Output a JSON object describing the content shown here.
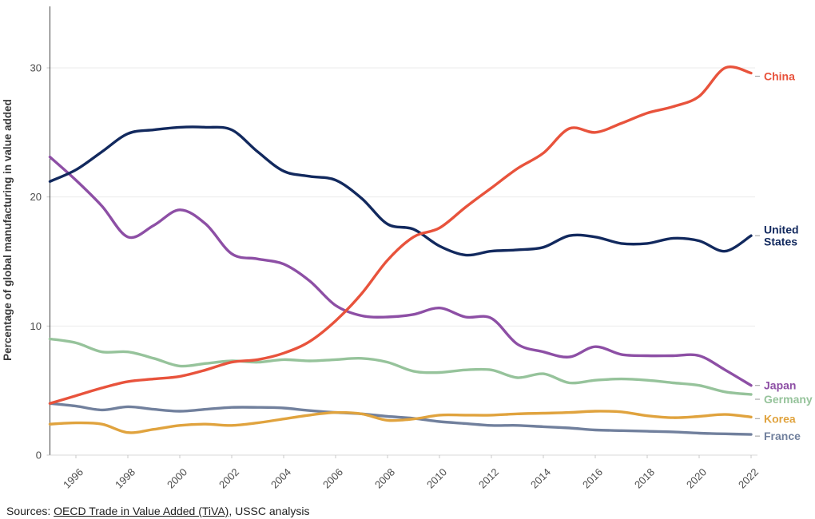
{
  "chart_data": {
    "type": "line",
    "title": "",
    "ylabel": "Percentage of global manufacturing in value added",
    "xlabel": "",
    "xlim": [
      1995,
      2022
    ],
    "ylim": [
      0,
      33.5
    ],
    "grid": "horizontal",
    "legend_position": "right-edge-labels",
    "y_ticks": [
      "0",
      "10",
      "20",
      "30"
    ],
    "x_tick_labels": [
      "1996",
      "1998",
      "2000",
      "2002",
      "2004",
      "2006",
      "2008",
      "2010",
      "2012",
      "2014",
      "2016",
      "2018",
      "2020",
      "2022"
    ],
    "years": [
      1995,
      1996,
      1997,
      1998,
      1999,
      2000,
      2001,
      2002,
      2003,
      2004,
      2005,
      2006,
      2007,
      2008,
      2009,
      2010,
      2011,
      2012,
      2013,
      2014,
      2015,
      2016,
      2017,
      2018,
      2019,
      2020,
      2021,
      2022
    ],
    "series": [
      {
        "name": "China",
        "label_lines": [
          "China"
        ],
        "color": "#e8533c",
        "label_dy": 4,
        "values": [
          4.0,
          4.6,
          5.2,
          5.7,
          5.9,
          6.1,
          6.6,
          7.2,
          7.4,
          7.9,
          8.8,
          10.4,
          12.5,
          15.1,
          16.9,
          17.6,
          19.2,
          20.7,
          22.2,
          23.4,
          25.3,
          25.0,
          25.7,
          26.5,
          27.0,
          27.8,
          30.0,
          29.6
        ]
      },
      {
        "name": "United States",
        "label_lines": [
          "United",
          "States"
        ],
        "color": "#12295e",
        "label_dy": 0,
        "values": [
          21.2,
          22.1,
          23.5,
          24.9,
          25.2,
          25.4,
          25.4,
          25.2,
          23.5,
          22.0,
          21.6,
          21.3,
          19.9,
          17.9,
          17.5,
          16.2,
          15.5,
          15.8,
          15.9,
          16.1,
          17.0,
          16.9,
          16.4,
          16.4,
          16.8,
          16.6,
          15.8,
          17.0
        ]
      },
      {
        "name": "Japan",
        "label_lines": [
          "Japan"
        ],
        "color": "#8d4fa5",
        "label_dy": 0,
        "values": [
          23.1,
          21.3,
          19.3,
          16.9,
          17.8,
          19.0,
          17.9,
          15.6,
          15.2,
          14.8,
          13.5,
          11.6,
          10.8,
          10.7,
          10.9,
          11.4,
          10.7,
          10.6,
          8.6,
          8.0,
          7.6,
          8.4,
          7.8,
          7.7,
          7.7,
          7.7,
          6.6,
          5.4
        ]
      },
      {
        "name": "Germany",
        "label_lines": [
          "Germany"
        ],
        "color": "#96c39b",
        "label_dy": 6,
        "values": [
          9.0,
          8.7,
          8.0,
          8.0,
          7.5,
          6.9,
          7.1,
          7.3,
          7.2,
          7.4,
          7.3,
          7.4,
          7.5,
          7.2,
          6.5,
          6.4,
          6.6,
          6.6,
          6.0,
          6.3,
          5.6,
          5.8,
          5.9,
          5.8,
          5.6,
          5.4,
          4.9,
          4.7
        ]
      },
      {
        "name": "Korea",
        "label_lines": [
          "Korea"
        ],
        "color": "#e0a33e",
        "label_dy": 2,
        "values": [
          2.4,
          2.5,
          2.4,
          1.75,
          2.0,
          2.3,
          2.4,
          2.3,
          2.5,
          2.8,
          3.1,
          3.3,
          3.2,
          2.7,
          2.8,
          3.1,
          3.1,
          3.1,
          3.2,
          3.25,
          3.3,
          3.4,
          3.35,
          3.05,
          2.9,
          3.0,
          3.15,
          2.95
        ]
      },
      {
        "name": "France",
        "label_lines": [
          "France"
        ],
        "color": "#71809d",
        "label_dy": 2,
        "values": [
          4.0,
          3.8,
          3.5,
          3.75,
          3.55,
          3.4,
          3.55,
          3.7,
          3.7,
          3.65,
          3.45,
          3.3,
          3.2,
          3.0,
          2.85,
          2.6,
          2.45,
          2.3,
          2.3,
          2.2,
          2.1,
          1.95,
          1.9,
          1.85,
          1.8,
          1.7,
          1.65,
          1.6
        ]
      }
    ],
    "colors": {
      "grid": "#ebebeb",
      "y_spine": "#454545",
      "x_axis": "#d9d9d9",
      "tick_mark": "#c9c9c9",
      "tick_text": "#4d4d4d",
      "axis_title_text": "#3a3a3a",
      "label_dash": "#aaaaaa"
    }
  },
  "footer": {
    "prefix": "Sources: ",
    "link": "OECD Trade in Value Added (TiVA)",
    "suffix": ", USSC analysis"
  }
}
